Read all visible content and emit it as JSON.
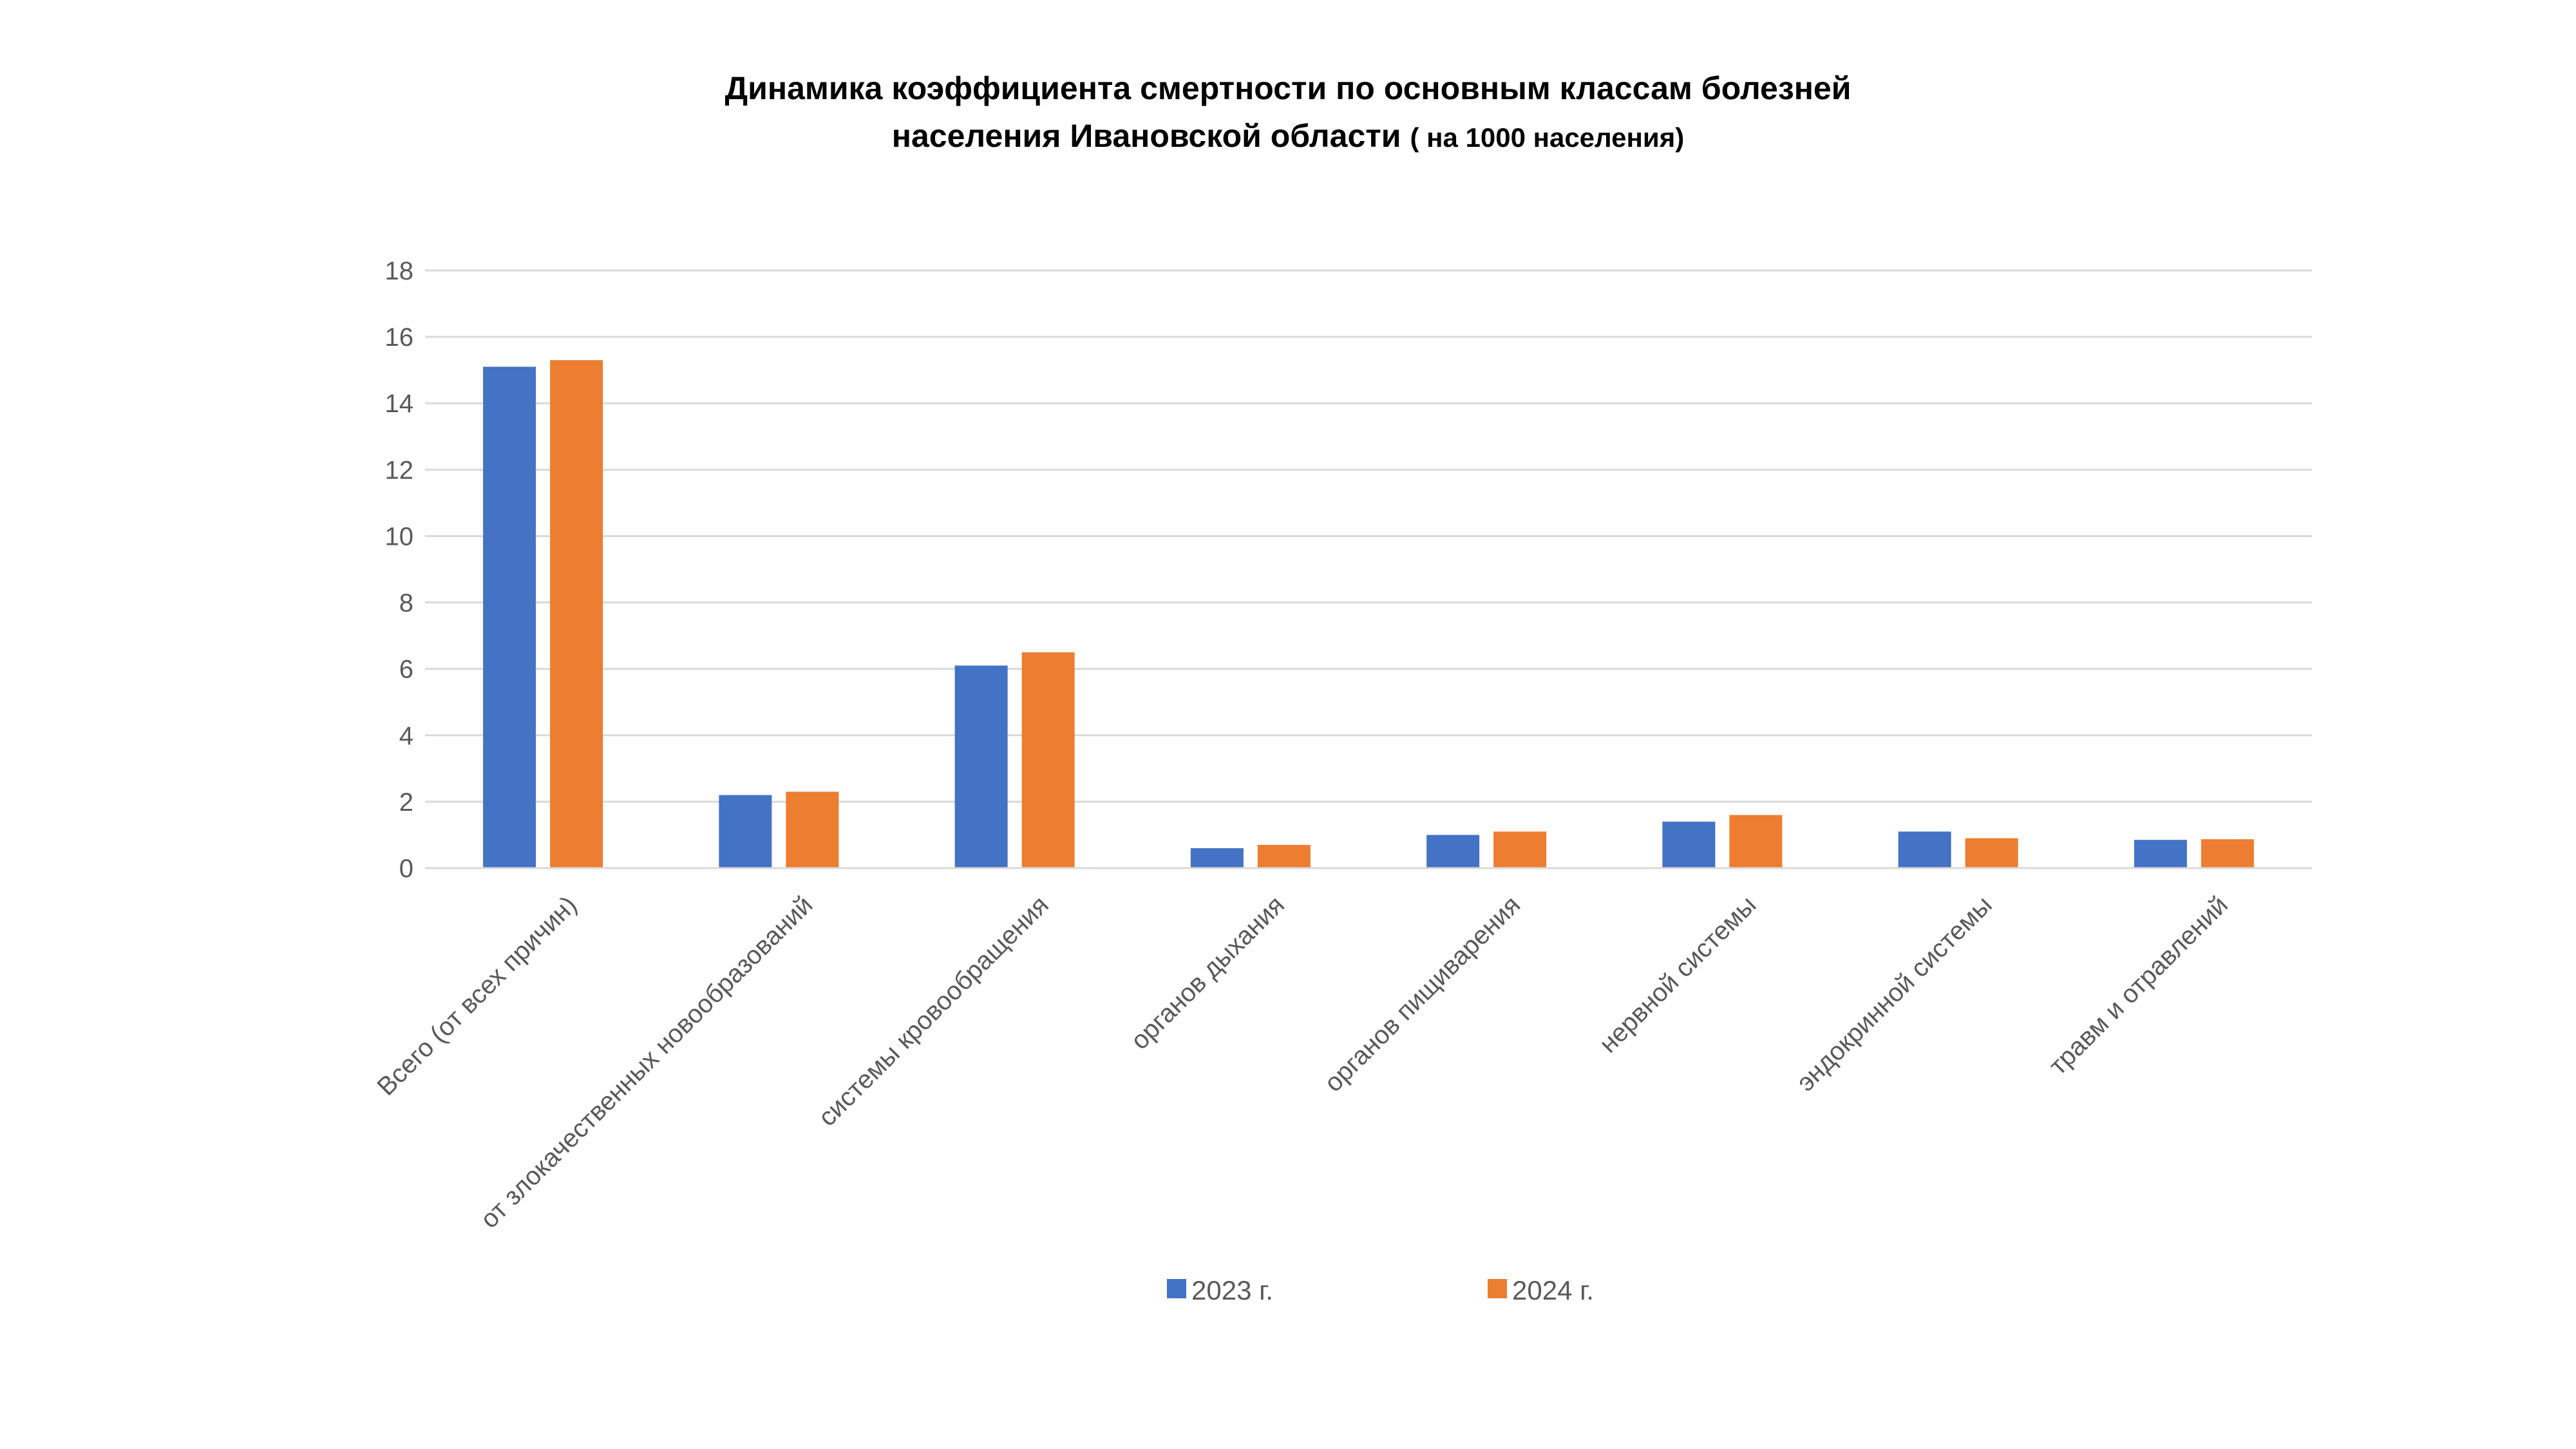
{
  "chart_data": {
    "type": "bar",
    "title_line1": "Динамика  коэффициента смертности по основным классам болезней",
    "title_line2": "населения Ивановской области",
    "title_suffix": "( на 1000 населения)",
    "xlabel": "",
    "ylabel": "",
    "ylim": [
      0,
      18
    ],
    "yticks": [
      0,
      2,
      4,
      6,
      8,
      10,
      12,
      14,
      16,
      18
    ],
    "grid": true,
    "legend_position": "bottom",
    "categories": [
      "Всего (от всех причин)",
      "от злокачественных новообразований",
      "системы кровообращения",
      "органов дыхания",
      "органов пищиварения",
      "нервной системы",
      "эндокринной системы",
      "травм и отравлений"
    ],
    "series": [
      {
        "name": "2023 г.",
        "color": "#4472C4",
        "values": [
          15.1,
          2.2,
          6.1,
          0.6,
          1.0,
          1.4,
          1.1,
          0.85
        ]
      },
      {
        "name": "2024 г.",
        "color": "#ED7D31",
        "values": [
          15.3,
          2.3,
          6.5,
          0.7,
          1.1,
          1.6,
          0.9,
          0.87
        ]
      }
    ]
  }
}
